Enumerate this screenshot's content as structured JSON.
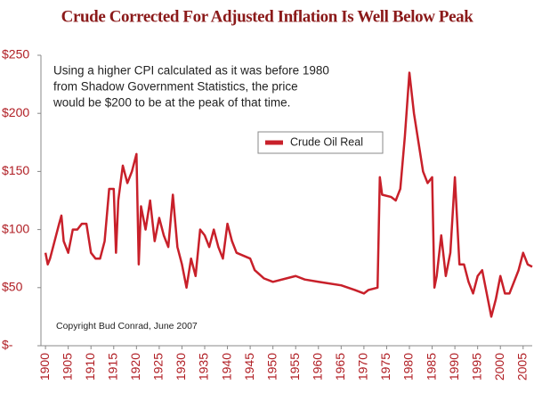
{
  "chart_data": {
    "type": "line",
    "title": "Crude Corrected For Adjusted Inflation Is Well Below Peak",
    "annotation": [
      "Using a higher CPI calculated as it was before 1980",
      "from Shadow Government Statistics, the price",
      "would be $200 to be at the peak of that time."
    ],
    "copyright": "Copyright Bud Conrad, June 2007",
    "legend_position": "upper center",
    "x": [
      1900,
      1900.5,
      1901,
      1902,
      1903,
      1903.5,
      1904,
      1905,
      1906,
      1907,
      1908,
      1909,
      1910,
      1911,
      1912,
      1913,
      1914,
      1915,
      1915.5,
      1916,
      1917,
      1918,
      1919,
      1920,
      1920.5,
      1921,
      1922,
      1923,
      1924,
      1925,
      1926,
      1927,
      1928,
      1929,
      1930,
      1931,
      1932,
      1933,
      1934,
      1935,
      1936,
      1937,
      1938,
      1939,
      1940,
      1941,
      1942,
      1945,
      1946,
      1948,
      1950,
      1953,
      1955,
      1957,
      1960,
      1965,
      1968,
      1970,
      1971,
      1973,
      1973.5,
      1974,
      1976,
      1977,
      1978,
      1979,
      1980,
      1981,
      1982,
      1983,
      1984,
      1985,
      1985.5,
      1986,
      1987,
      1988,
      1989,
      1990,
      1991,
      1992,
      1993,
      1994,
      1995,
      1996,
      1997,
      1998,
      1999,
      2000,
      2001,
      2002,
      2003,
      2004,
      2005,
      2006,
      2007
    ],
    "series": [
      {
        "name": "Crude Oil Real",
        "color": "#c8202a",
        "values": [
          80,
          70,
          75,
          90,
          105,
          112,
          90,
          80,
          100,
          100,
          105,
          105,
          80,
          75,
          75,
          90,
          135,
          135,
          80,
          125,
          155,
          140,
          150,
          165,
          70,
          120,
          100,
          125,
          90,
          110,
          95,
          85,
          130,
          85,
          70,
          50,
          75,
          60,
          100,
          95,
          85,
          100,
          85,
          75,
          105,
          90,
          80,
          75,
          65,
          58,
          55,
          58,
          60,
          57,
          55,
          52,
          48,
          45,
          48,
          50,
          145,
          130,
          128,
          125,
          135,
          180,
          235,
          200,
          175,
          150,
          140,
          145,
          50,
          60,
          95,
          60,
          80,
          145,
          70,
          70,
          55,
          45,
          60,
          65,
          45,
          25,
          40,
          60,
          45,
          45,
          55,
          65,
          80,
          70,
          68
        ]
      }
    ],
    "xlim": [
      1899,
      2007
    ],
    "ylim": [
      0,
      250
    ],
    "xticks": [
      1900,
      1905,
      1910,
      1915,
      1920,
      1925,
      1930,
      1935,
      1940,
      1945,
      1950,
      1955,
      1960,
      1965,
      1970,
      1975,
      1980,
      1985,
      1990,
      1995,
      2000,
      2005
    ],
    "yticks": [
      {
        "value": 0,
        "label": "$-"
      },
      {
        "value": 50,
        "label": "$50"
      },
      {
        "value": 100,
        "label": "$100"
      },
      {
        "value": 150,
        "label": "$150"
      },
      {
        "value": 200,
        "label": "$200"
      },
      {
        "value": 250,
        "label": "$250"
      }
    ]
  }
}
